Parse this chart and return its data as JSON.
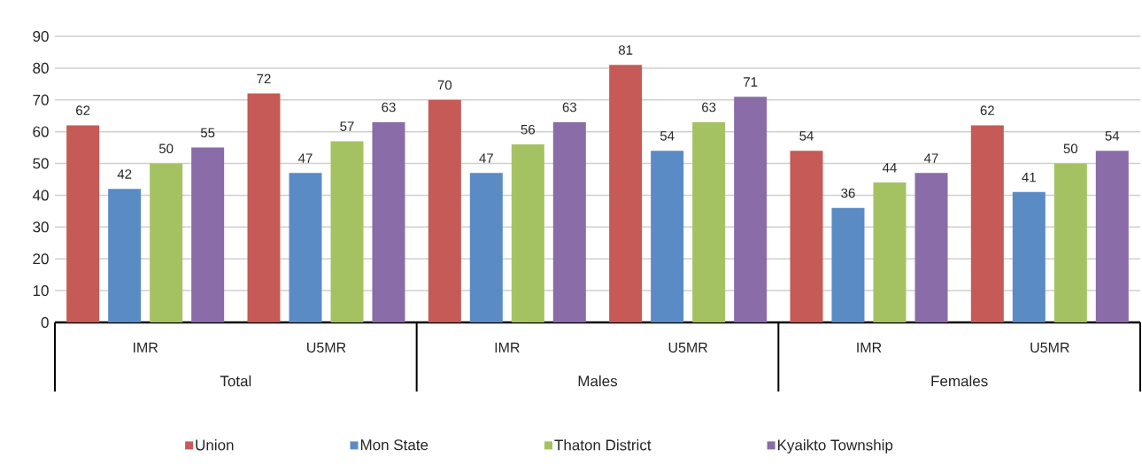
{
  "chart_data": {
    "type": "bar",
    "categories": [
      "IMR",
      "U5MR",
      "IMR",
      "U5MR",
      "IMR",
      "U5MR"
    ],
    "series": [
      {
        "name": "Union",
        "color": "#c55a56",
        "values": [
          62,
          72,
          70,
          81,
          54,
          62
        ]
      },
      {
        "name": "Mon State",
        "color": "#5b8bc4",
        "values": [
          42,
          47,
          47,
          54,
          36,
          41
        ]
      },
      {
        "name": "Thaton District",
        "color": "#a5c263",
        "values": [
          50,
          57,
          56,
          63,
          44,
          50
        ]
      },
      {
        "name": "Kyaikto Township",
        "color": "#8a6ca8",
        "values": [
          55,
          63,
          63,
          71,
          47,
          54
        ]
      }
    ],
    "annotations": [
      "Total",
      "Males",
      "Females"
    ],
    "ylim": [
      0,
      90
    ],
    "yticks": [
      0,
      10,
      20,
      30,
      40,
      50,
      60,
      70,
      80,
      90
    ],
    "grid": "y",
    "legend": "bottom",
    "data_labels": true
  }
}
